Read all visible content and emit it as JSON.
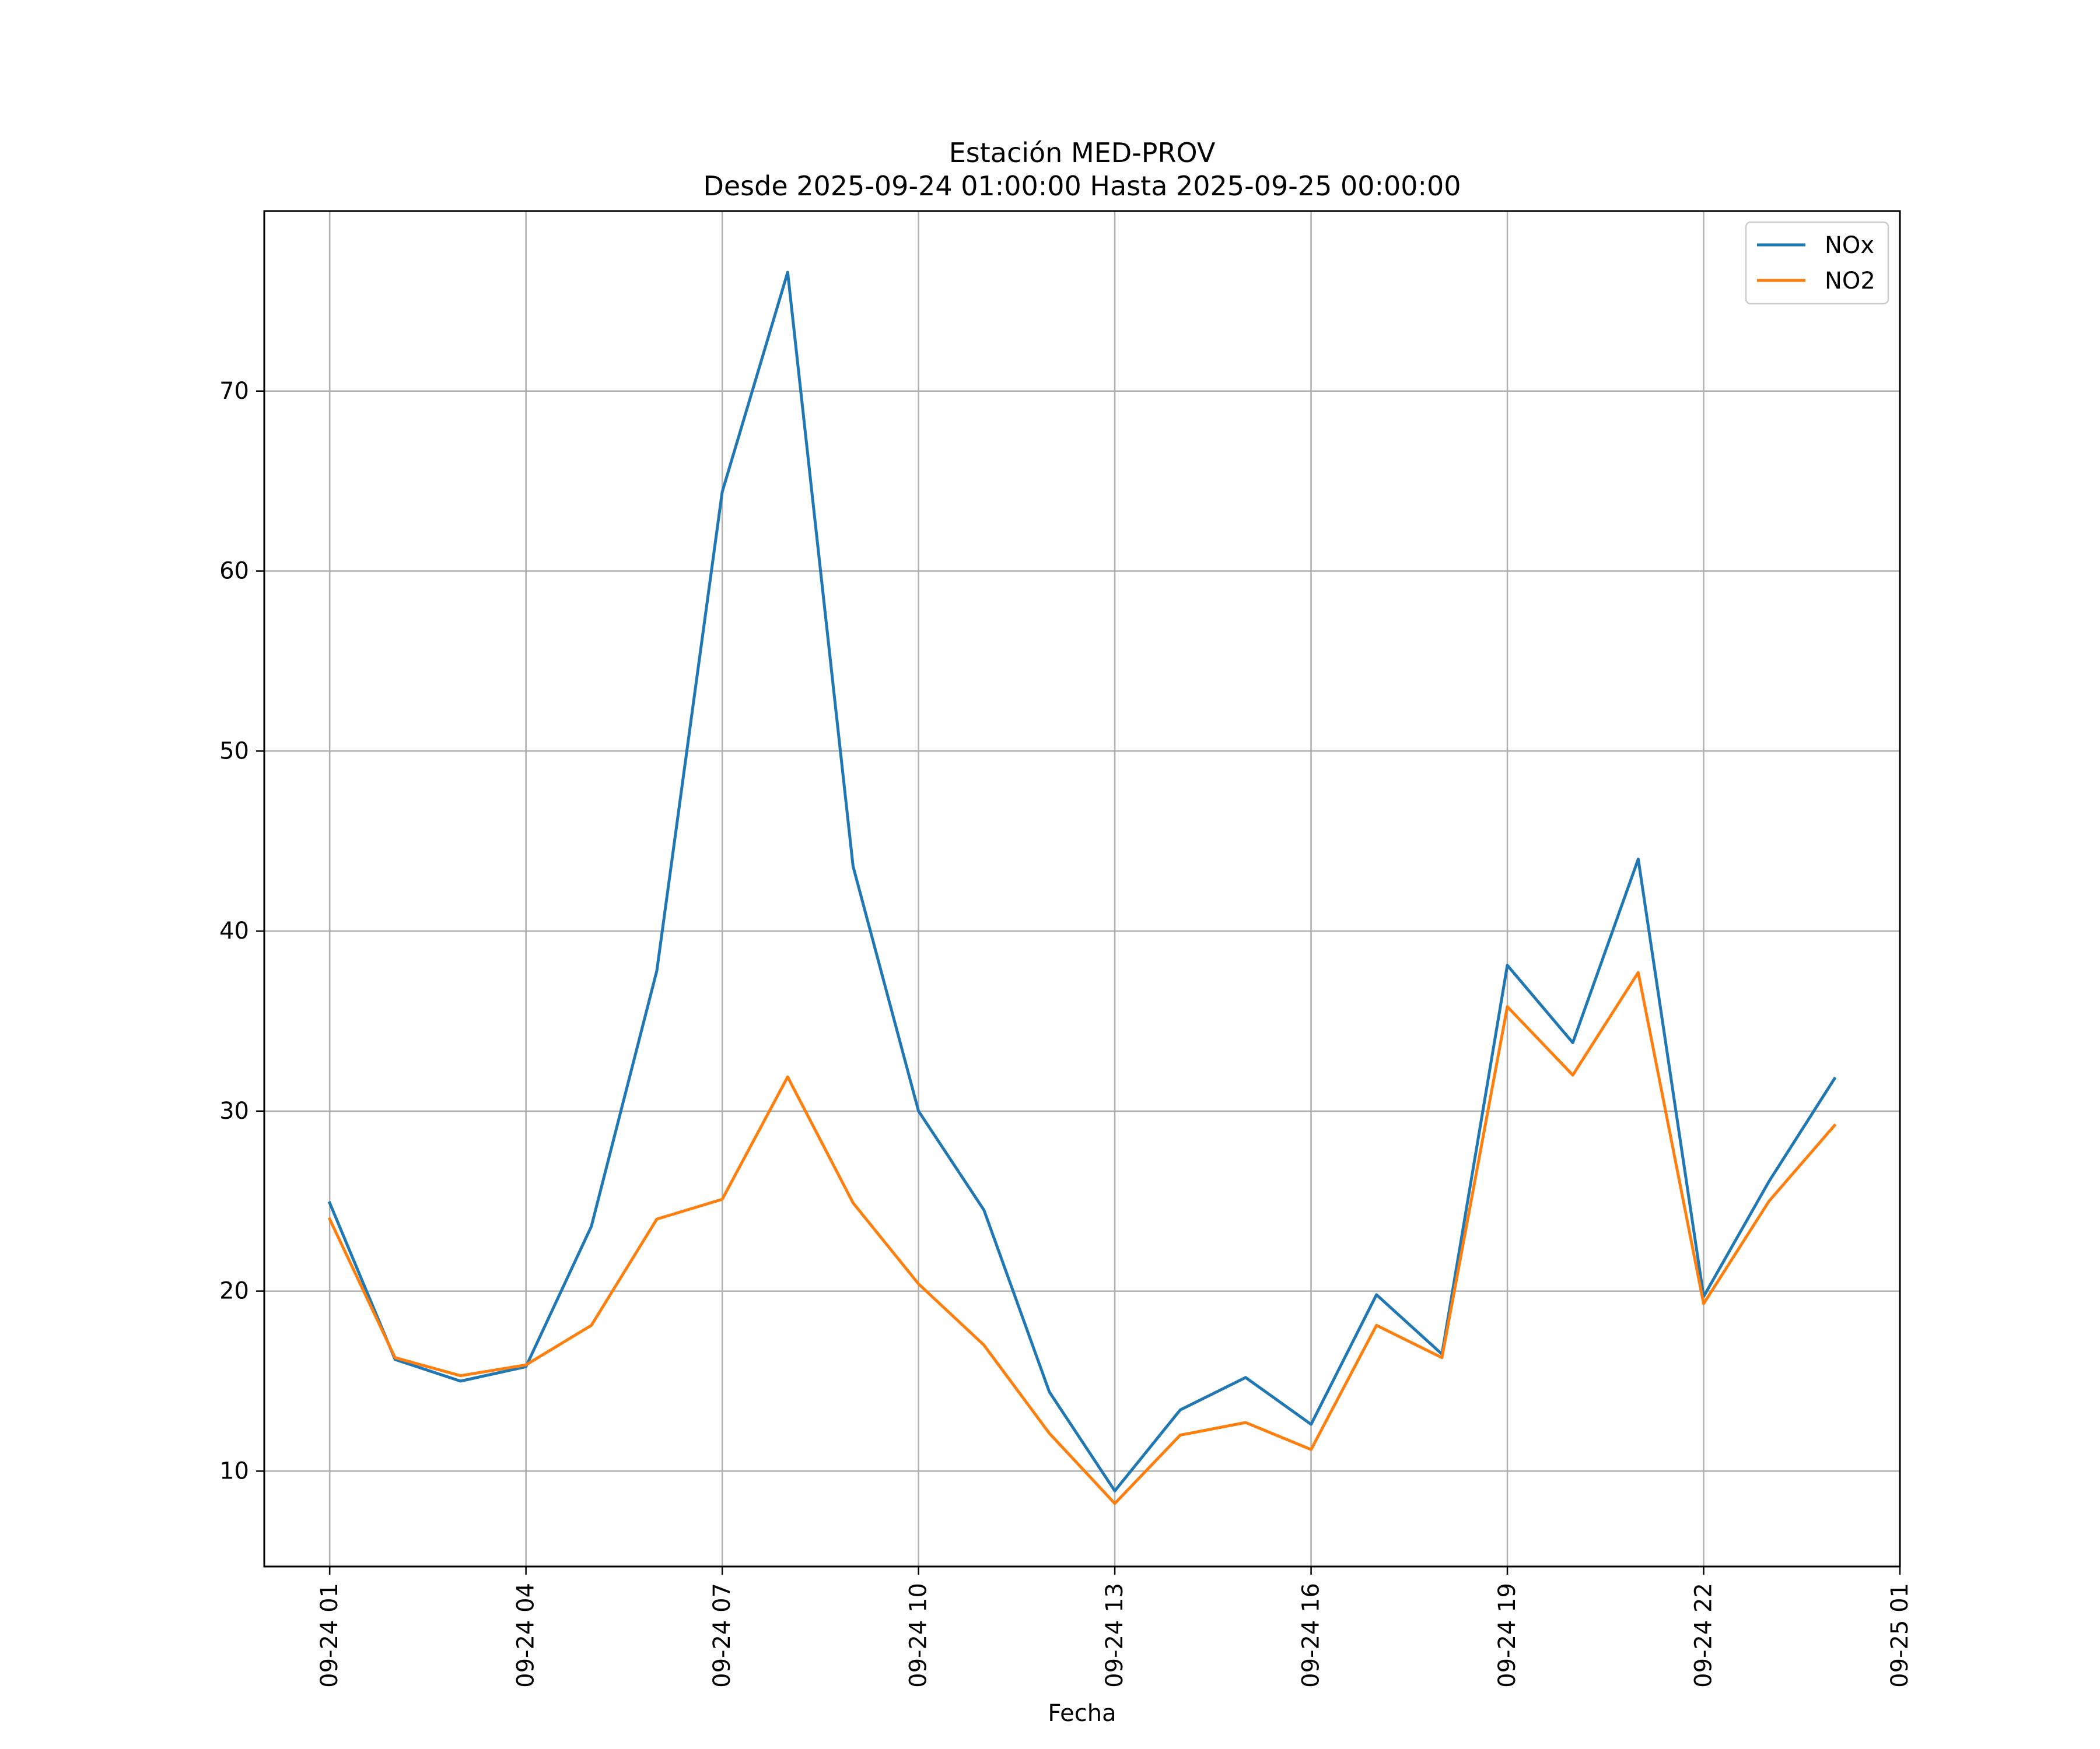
{
  "chart_data": {
    "type": "line",
    "title": "Estación MED-PROV",
    "subtitle": "Desde 2025-09-24 01:00:00 Hasta 2025-09-25 00:00:00",
    "xlabel": "Fecha",
    "ylabel": "",
    "x_unit": "hour",
    "x": [
      "2025-09-24 01:00",
      "2025-09-24 02:00",
      "2025-09-24 03:00",
      "2025-09-24 04:00",
      "2025-09-24 05:00",
      "2025-09-24 06:00",
      "2025-09-24 07:00",
      "2025-09-24 08:00",
      "2025-09-24 09:00",
      "2025-09-24 10:00",
      "2025-09-24 11:00",
      "2025-09-24 12:00",
      "2025-09-24 13:00",
      "2025-09-24 14:00",
      "2025-09-24 15:00",
      "2025-09-24 16:00",
      "2025-09-24 17:00",
      "2025-09-24 18:00",
      "2025-09-24 19:00",
      "2025-09-24 20:00",
      "2025-09-24 21:00",
      "2025-09-24 22:00",
      "2025-09-24 23:00",
      "2025-09-25 00:00"
    ],
    "xlim": [
      "2025-09-24 00:00",
      "2025-09-25 01:00"
    ],
    "ylim": [
      4.7,
      80.0
    ],
    "xticks": [
      "2025-09-24 01:00",
      "2025-09-24 04:00",
      "2025-09-24 07:00",
      "2025-09-24 10:00",
      "2025-09-24 13:00",
      "2025-09-24 16:00",
      "2025-09-24 19:00",
      "2025-09-24 22:00",
      "2025-09-25 01:00"
    ],
    "xtick_labels": [
      "09-24 01",
      "09-24 04",
      "09-24 07",
      "09-24 10",
      "09-24 13",
      "09-24 16",
      "09-24 19",
      "09-24 22",
      "09-25 01"
    ],
    "yticks": [
      10,
      20,
      30,
      40,
      50,
      60,
      70
    ],
    "ytick_labels": [
      "10",
      "20",
      "30",
      "40",
      "50",
      "60",
      "70"
    ],
    "grid": true,
    "legend_position": "top-right",
    "series": [
      {
        "name": "NOx",
        "color": "#1f77b4",
        "values": [
          24.9,
          16.2,
          15.0,
          15.8,
          23.6,
          37.8,
          64.4,
          76.6,
          43.6,
          30.0,
          24.5,
          14.4,
          8.9,
          13.4,
          15.2,
          12.6,
          19.8,
          16.5,
          38.1,
          33.8,
          44.0,
          19.7,
          26.1,
          31.8
        ]
      },
      {
        "name": "NO2",
        "color": "#ff7f0e",
        "values": [
          24.0,
          16.3,
          15.3,
          15.9,
          18.1,
          24.0,
          25.1,
          31.9,
          24.9,
          20.4,
          17.0,
          12.1,
          8.2,
          12.0,
          12.7,
          11.2,
          18.1,
          16.3,
          35.8,
          32.0,
          37.7,
          19.3,
          25.0,
          29.2
        ]
      }
    ]
  }
}
